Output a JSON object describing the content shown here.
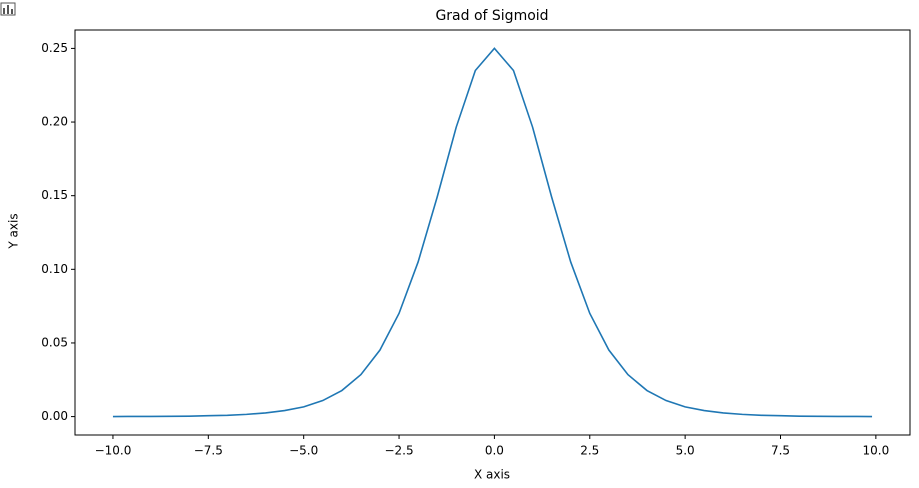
{
  "chart_data": {
    "type": "line",
    "title": "Grad of Sigmoid",
    "x_label": "X axis",
    "y_label": "Y axis",
    "x": [
      -10,
      -9.5,
      -9,
      -8.5,
      -8,
      -7.5,
      -7,
      -6.5,
      -6,
      -5.5,
      -5,
      -4.5,
      -4,
      -3.5,
      -3,
      -2.5,
      -2,
      -1.5,
      -1,
      -0.5,
      0,
      0.5,
      1,
      1.5,
      2,
      2.5,
      3,
      3.5,
      4,
      4.5,
      5,
      5.5,
      6,
      6.5,
      7,
      7.5,
      8,
      8.5,
      9,
      9.5,
      9.9
    ],
    "series": [
      {
        "name": "grad",
        "color": "#1f77b4",
        "values": [
          0.0,
          0.0001,
          0.0001,
          0.0002,
          0.0003,
          0.0006,
          0.0009,
          0.0015,
          0.0025,
          0.0041,
          0.0066,
          0.0109,
          0.0177,
          0.0285,
          0.0452,
          0.0701,
          0.105,
          0.1491,
          0.1966,
          0.235,
          0.25,
          0.235,
          0.1966,
          0.1491,
          0.105,
          0.0701,
          0.0452,
          0.0285,
          0.0177,
          0.0109,
          0.0066,
          0.0041,
          0.0025,
          0.0015,
          0.0009,
          0.0006,
          0.0003,
          0.0002,
          0.0001,
          0.0001,
          0.0
        ]
      }
    ],
    "xlim": [
      -10.995,
      10.895
    ],
    "ylim": [
      -0.0125,
      0.2625
    ],
    "xticks": [
      {
        "value": -10,
        "label": "−10.0"
      },
      {
        "value": -7.5,
        "label": "−7.5"
      },
      {
        "value": -5,
        "label": "−5.0"
      },
      {
        "value": -2.5,
        "label": "−2.5"
      },
      {
        "value": 0,
        "label": "0.0"
      },
      {
        "value": 2.5,
        "label": "2.5"
      },
      {
        "value": 5,
        "label": "5.0"
      },
      {
        "value": 7.5,
        "label": "7.5"
      },
      {
        "value": 10,
        "label": "10.0"
      }
    ],
    "yticks": [
      {
        "value": 0,
        "label": "0.00"
      },
      {
        "value": 0.05,
        "label": "0.05"
      },
      {
        "value": 0.1,
        "label": "0.10"
      },
      {
        "value": 0.15,
        "label": "0.15"
      },
      {
        "value": 0.2,
        "label": "0.20"
      },
      {
        "value": 0.25,
        "label": "0.25"
      }
    ],
    "grid": false
  }
}
